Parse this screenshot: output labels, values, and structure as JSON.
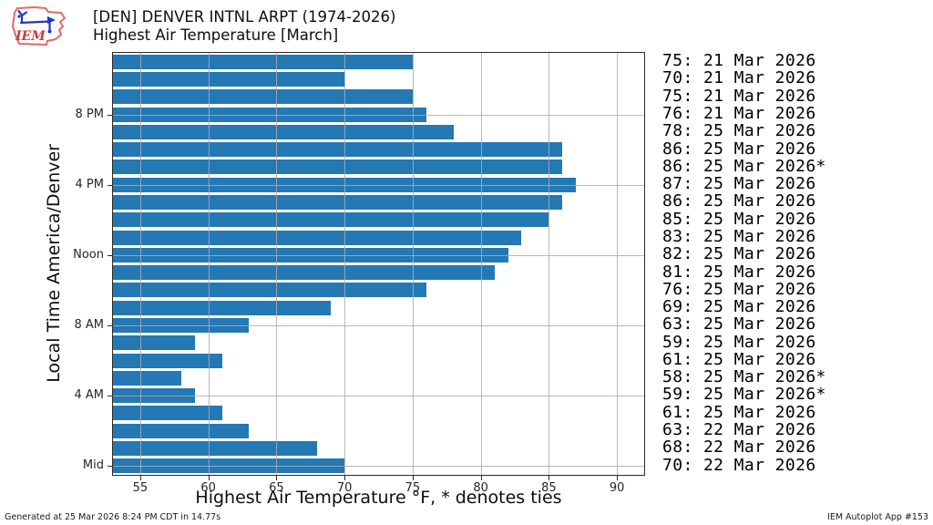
{
  "header": {
    "title": "[DEN] DENVER INTNL ARPT (1974-2026)",
    "subtitle": "Highest Air Temperature [March]"
  },
  "logo": {
    "text": "IEM"
  },
  "footer": {
    "generated": "Generated at 25 Mar 2026 8:24 PM CDT in 14.77s",
    "app": "IEM Autoplot App #153"
  },
  "chart_data": {
    "type": "bar",
    "orientation": "horizontal",
    "title": "Highest Air Temperature [March]",
    "xlabel": "Highest Air Temperature °F, * denotes ties",
    "ylabel": "Local Time America/Denver",
    "xlim": [
      53,
      92
    ],
    "xticks": [
      55,
      60,
      65,
      70,
      75,
      80,
      85,
      90
    ],
    "yticks": [
      {
        "slot": 3,
        "label": "8 PM"
      },
      {
        "slot": 7,
        "label": "4 PM"
      },
      {
        "slot": 11,
        "label": "Noon"
      },
      {
        "slot": 15,
        "label": "8 AM"
      },
      {
        "slot": 19,
        "label": "4 AM"
      },
      {
        "slot": 23,
        "label": "Mid"
      }
    ],
    "grid": true,
    "legend": null,
    "bar_color": "#2478b4",
    "rows": [
      {
        "value": 75,
        "list_label": "75: 21 Mar 2026"
      },
      {
        "value": 70,
        "list_label": "70: 21 Mar 2026"
      },
      {
        "value": 75,
        "list_label": "75: 21 Mar 2026"
      },
      {
        "value": 76,
        "list_label": "76: 21 Mar 2026"
      },
      {
        "value": 78,
        "list_label": "78: 25 Mar 2026"
      },
      {
        "value": 86,
        "list_label": "86: 25 Mar 2026"
      },
      {
        "value": 86,
        "list_label": "86: 25 Mar 2026*"
      },
      {
        "value": 87,
        "list_label": "87: 25 Mar 2026"
      },
      {
        "value": 86,
        "list_label": "86: 25 Mar 2026"
      },
      {
        "value": 85,
        "list_label": "85: 25 Mar 2026"
      },
      {
        "value": 83,
        "list_label": "83: 25 Mar 2026"
      },
      {
        "value": 82,
        "list_label": "82: 25 Mar 2026"
      },
      {
        "value": 81,
        "list_label": "81: 25 Mar 2026"
      },
      {
        "value": 76,
        "list_label": "76: 25 Mar 2026"
      },
      {
        "value": 69,
        "list_label": "69: 25 Mar 2026"
      },
      {
        "value": 63,
        "list_label": "63: 25 Mar 2026"
      },
      {
        "value": 59,
        "list_label": "59: 25 Mar 2026"
      },
      {
        "value": 61,
        "list_label": "61: 25 Mar 2026"
      },
      {
        "value": 58,
        "list_label": "58: 25 Mar 2026*"
      },
      {
        "value": 59,
        "list_label": "59: 25 Mar 2026*"
      },
      {
        "value": 61,
        "list_label": "61: 25 Mar 2026"
      },
      {
        "value": 63,
        "list_label": "63: 22 Mar 2026"
      },
      {
        "value": 68,
        "list_label": "68: 22 Mar 2026"
      },
      {
        "value": 70,
        "list_label": "70: 22 Mar 2026"
      }
    ]
  }
}
